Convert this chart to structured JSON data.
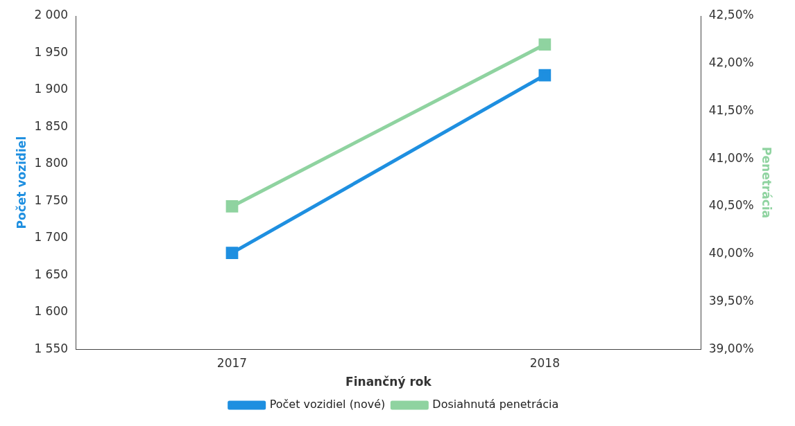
{
  "chart_data": {
    "type": "line",
    "xlabel": "Finančný rok",
    "ylabel": "Počet vozidiel",
    "y2label": "Penetrácia",
    "categories": [
      "2017",
      "2018"
    ],
    "series": [
      {
        "name": "Počet vozidiel (nové)",
        "color": "#1e8fe0",
        "values": [
          1680,
          1920
        ]
      },
      {
        "name": "Dosiahnutá penetrácia",
        "color": "#8fd3a0",
        "values": [
          40.5,
          42.2
        ],
        "axis": "y2"
      }
    ],
    "ylim": [
      1550,
      2000
    ],
    "yticks": [
      {
        "value": 1550,
        "label": "1 550"
      },
      {
        "value": 1600,
        "label": "1 600"
      },
      {
        "value": 1650,
        "label": "1 650"
      },
      {
        "value": 1700,
        "label": "1 700"
      },
      {
        "value": 1750,
        "label": "1 750"
      },
      {
        "value": 1800,
        "label": "1 800"
      },
      {
        "value": 1850,
        "label": "1 850"
      },
      {
        "value": 1900,
        "label": "1 900"
      },
      {
        "value": 1950,
        "label": "1 950"
      },
      {
        "value": 2000,
        "label": "2 000"
      }
    ],
    "y2lim": [
      39,
      42.5
    ],
    "y2ticks": [
      {
        "value": 39,
        "label": "39,00%"
      },
      {
        "value": 39.5,
        "label": "39,50%"
      },
      {
        "value": 40,
        "label": "40,00%"
      },
      {
        "value": 40.5,
        "label": "40,50%"
      },
      {
        "value": 41,
        "label": "41,00%"
      },
      {
        "value": 41.5,
        "label": "41,50%"
      },
      {
        "value": 42,
        "label": "42,00%"
      },
      {
        "value": 42.5,
        "label": "42,50%"
      }
    ],
    "grid": false,
    "legend": "bottom",
    "marker": "square",
    "line_style": "solid"
  }
}
